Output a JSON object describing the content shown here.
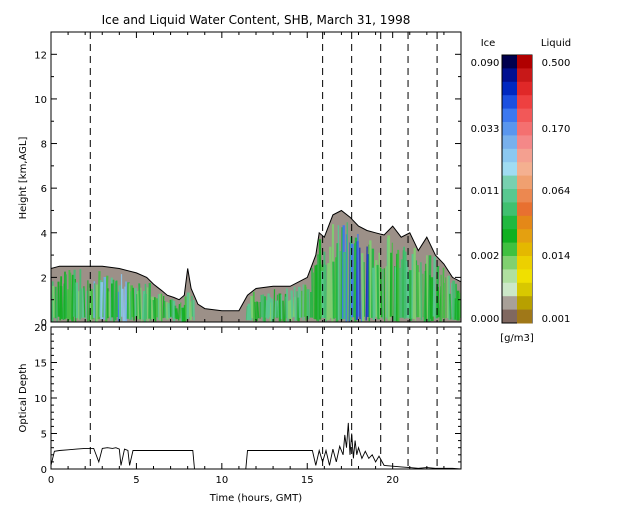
{
  "chart_data": [
    {
      "type": "heatmap",
      "title": "Ice and Liquid Water Content, SHB, March 31, 1998",
      "xlabel": "",
      "ylabel": "Height [km,AGL]",
      "xlim": [
        0,
        24
      ],
      "ylim": [
        0,
        13
      ],
      "yticks": [
        "0",
        "2",
        "4",
        "6",
        "8",
        "10",
        "12"
      ],
      "dashed_time_markers": [
        2.3,
        15.9,
        17.6,
        19.3,
        20.9,
        22.6
      ],
      "cloud_top_height_km": [
        [
          0,
          2.4
        ],
        [
          0.5,
          2.5
        ],
        [
          1,
          2.5
        ],
        [
          2,
          2.5
        ],
        [
          3,
          2.5
        ],
        [
          4,
          2.4
        ],
        [
          5,
          2.2
        ],
        [
          5.6,
          2.0
        ],
        [
          6,
          1.7
        ],
        [
          6.5,
          1.4
        ],
        [
          6.8,
          1.2
        ],
        [
          7.2,
          1.1
        ],
        [
          7.5,
          1.0
        ],
        [
          7.8,
          1.2
        ],
        [
          8.0,
          2.4
        ],
        [
          8.2,
          1.5
        ],
        [
          8.6,
          0.8
        ],
        [
          9,
          0.6
        ],
        [
          10,
          0.5
        ],
        [
          11,
          0.5
        ],
        [
          11.5,
          1.2
        ],
        [
          12,
          1.5
        ],
        [
          13,
          1.6
        ],
        [
          14,
          1.6
        ],
        [
          15,
          2.0
        ],
        [
          15.5,
          3.0
        ],
        [
          15.7,
          4.0
        ],
        [
          16.0,
          3.8
        ],
        [
          16.5,
          4.8
        ],
        [
          17,
          5.0
        ],
        [
          17.5,
          4.7
        ],
        [
          18,
          4.3
        ],
        [
          18.5,
          4.1
        ],
        [
          19,
          4.0
        ],
        [
          19.5,
          3.9
        ],
        [
          20,
          4.3
        ],
        [
          20.5,
          3.8
        ],
        [
          21,
          4.0
        ],
        [
          21.5,
          3.2
        ],
        [
          22,
          3.8
        ],
        [
          22.5,
          3.0
        ],
        [
          23,
          2.6
        ],
        [
          23.5,
          2.0
        ],
        [
          24,
          1.8
        ]
      ],
      "colorbar": {
        "ice_label": "Ice",
        "liquid_label": "Liquid",
        "units": "[g/m3]",
        "ice_ticks": [
          "0.090",
          "0.033",
          "0.011",
          "0.002",
          "0.000"
        ],
        "liquid_ticks": [
          "0.500",
          "0.170",
          "0.064",
          "0.014",
          "0.001"
        ],
        "ice_colors": [
          "#00004e",
          "#001090",
          "#0028c0",
          "#1c50e0",
          "#3c78f0",
          "#5a96ee",
          "#78b0ec",
          "#8cc8f0",
          "#a0dcf2",
          "#78d0b0",
          "#58c890",
          "#40c070",
          "#20b840",
          "#10b020",
          "#40c040",
          "#80d070",
          "#b0e0a0",
          "#cce8c8",
          "#a8a098",
          "#806860"
        ],
        "liquid_colors": [
          "#b00000",
          "#c81818",
          "#e02828",
          "#ee4040",
          "#f25858",
          "#f47070",
          "#f48888",
          "#f4a090",
          "#f4b090",
          "#f0a070",
          "#ec8850",
          "#e87030",
          "#e48818",
          "#e4a010",
          "#e4b800",
          "#ecd000",
          "#f0e000",
          "#d8c800",
          "#b8a000",
          "#a07818"
        ]
      }
    },
    {
      "type": "line",
      "title": "",
      "xlabel": "Time (hours, GMT)",
      "ylabel": "Optical Depth",
      "xlim": [
        0,
        24
      ],
      "ylim": [
        0,
        20
      ],
      "xticks": [
        "0",
        "5",
        "10",
        "15",
        "20"
      ],
      "yticks": [
        "0",
        "5",
        "10",
        "15",
        "20"
      ],
      "dashed_time_markers": [
        2.3,
        15.9,
        17.6,
        19.3,
        20.9,
        22.6
      ],
      "x": [
        0,
        0.2,
        0.5,
        1.0,
        1.5,
        2.0,
        2.5,
        2.8,
        3.0,
        3.3,
        3.6,
        3.8,
        4.0,
        4.1,
        4.3,
        4.5,
        4.6,
        4.8,
        5.0,
        5.2,
        5.5,
        6.0,
        6.5,
        7.0,
        7.5,
        8.0,
        8.3,
        8.4,
        11.4,
        11.5,
        12.0,
        12.5,
        13.0,
        13.5,
        14.0,
        14.5,
        15.0,
        15.3,
        15.5,
        15.7,
        15.9,
        16.1,
        16.3,
        16.5,
        16.7,
        16.9,
        17.1,
        17.2,
        17.3,
        17.4,
        17.5,
        17.6,
        17.7,
        17.8,
        17.9,
        18.0,
        18.2,
        18.4,
        18.6,
        18.8,
        19.0,
        19.2,
        19.5,
        20.0,
        20.5,
        21.0,
        21.5,
        22.0,
        22.5,
        23.0,
        23.5,
        24.0
      ],
      "values": [
        0.5,
        2.5,
        2.6,
        2.7,
        2.8,
        2.9,
        2.9,
        1.0,
        2.9,
        3.0,
        2.9,
        3.0,
        2.8,
        0.5,
        2.8,
        2.6,
        0.5,
        2.6,
        2.6,
        2.6,
        2.6,
        2.6,
        2.6,
        2.6,
        2.6,
        2.6,
        2.6,
        0.0,
        0.0,
        2.6,
        2.6,
        2.6,
        2.6,
        2.6,
        2.6,
        2.6,
        2.6,
        2.6,
        0.5,
        2.6,
        1.0,
        2.6,
        0.5,
        2.8,
        1.0,
        3.2,
        2.0,
        4.8,
        3.0,
        6.5,
        2.0,
        5.0,
        1.5,
        4.0,
        2.0,
        3.0,
        1.5,
        2.5,
        1.5,
        2.0,
        1.0,
        1.8,
        0.5,
        0.4,
        0.3,
        0.2,
        0.1,
        0.2,
        0.1,
        0.1,
        0.1,
        0.0
      ]
    }
  ]
}
